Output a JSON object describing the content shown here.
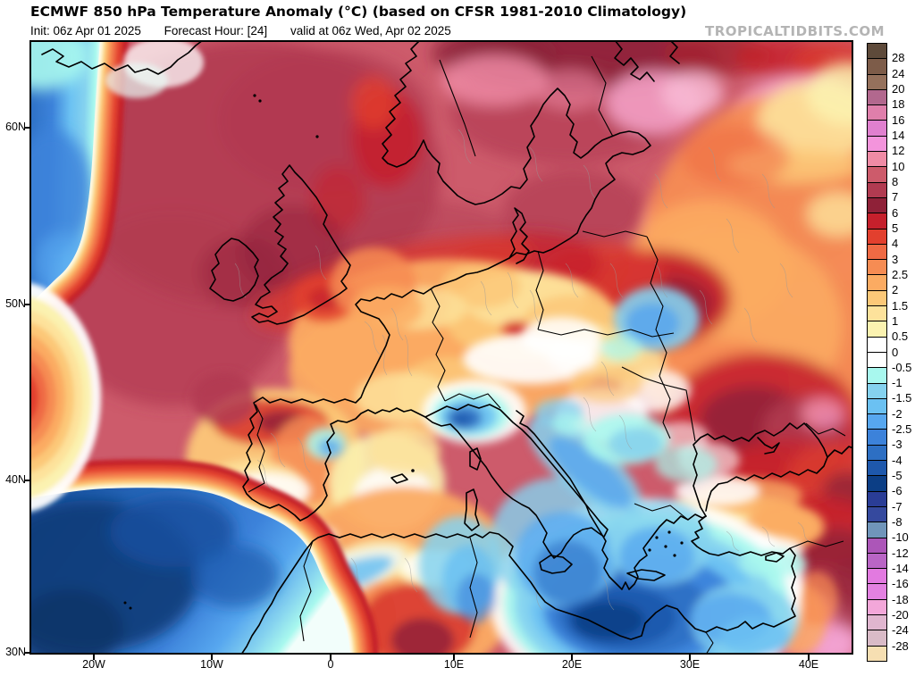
{
  "header": {
    "title": "ECMWF 850 hPa Temperature Anomaly (°C) (based on CFSR 1981-2010 Climatology)",
    "init": "Init: 06z Apr 01 2025",
    "forecast_hour": "Forecast Hour: [24]",
    "valid": "valid at 06z Wed, Apr 02 2025",
    "watermark": "TROPICALTIDBITS.COM"
  },
  "map": {
    "lat_labels": [
      "60N",
      "50N",
      "40N",
      "30N"
    ],
    "lon_labels": [
      "20W",
      "10W",
      "0",
      "10E",
      "20E",
      "30E",
      "40E"
    ]
  },
  "colorbar": {
    "labels": [
      "28",
      "24",
      "20",
      "18",
      "16",
      "14",
      "12",
      "10",
      "8",
      "7",
      "6",
      "5",
      "4",
      "3",
      "2.5",
      "2",
      "1.5",
      "1",
      "0.5",
      "0",
      "-0.5",
      "-1",
      "-1.5",
      "-2",
      "-2.5",
      "-3",
      "-4",
      "-5",
      "-6",
      "-7",
      "-8",
      "-10",
      "-12",
      "-14",
      "-16",
      "-18",
      "-20",
      "-24",
      "-28"
    ],
    "segments": [
      "#5e4a3a",
      "#7d5c49",
      "#95715c",
      "#b2688e",
      "#df7fab",
      "#e080cf",
      "#f394dc",
      "#ef8ba5",
      "#cd5b6b",
      "#b13b51",
      "#8f2138",
      "#c5202c",
      "#e2402e",
      "#ef6a44",
      "#f68c53",
      "#fbab62",
      "#fcc878",
      "#fde29b",
      "#fbf2b0",
      "#ffffff",
      "#ffffff",
      "#a8f8ee",
      "#85d2ef",
      "#6bc1f2",
      "#57a7ef",
      "#3c82da",
      "#2d6fc3",
      "#1e58ac",
      "#0c3e85",
      "#2a3d96",
      "#35499e",
      "#7095ba",
      "#ac56b8",
      "#b965c5",
      "#e27ae0",
      "#e381e1",
      "#f3a7d9",
      "#e0b6cf",
      "#d9bbc7",
      "#f6dfb2"
    ]
  }
}
